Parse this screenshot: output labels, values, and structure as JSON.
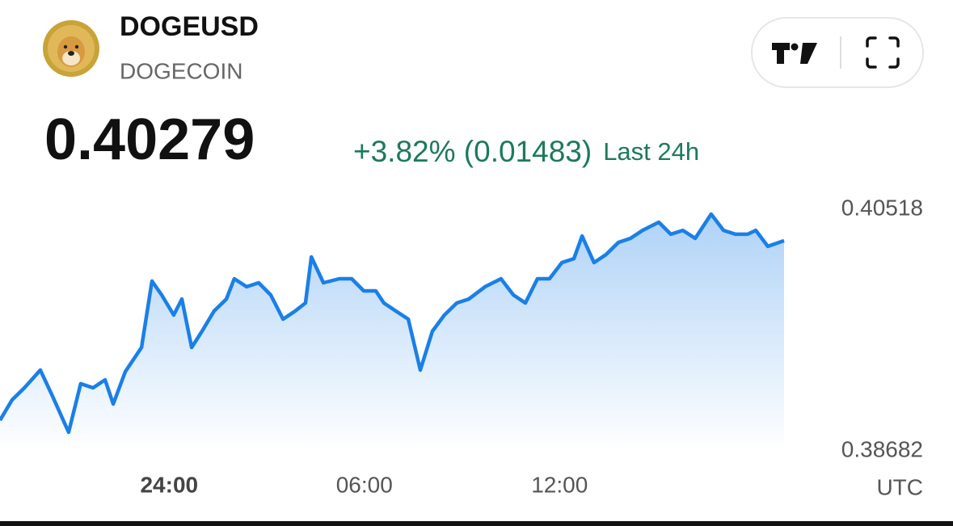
{
  "header": {
    "symbol": "DOGEUSD",
    "name": "DOGECOIN"
  },
  "price": {
    "last": "0.40279",
    "change": "+3.82% (0.01483)",
    "period": "Last 24h"
  },
  "chart_data": {
    "type": "area",
    "x": [
      18.8,
      19.17,
      19.55,
      20.04,
      20.41,
      20.91,
      21.28,
      21.66,
      22.03,
      22.28,
      22.65,
      23.15,
      23.47,
      23.77,
      24.14,
      24.39,
      24.69,
      25.01,
      25.38,
      25.76,
      26.0,
      26.38,
      26.75,
      27.12,
      27.5,
      27.87,
      28.19,
      28.37,
      28.74,
      29.23,
      29.61,
      29.98,
      30.35,
      30.6,
      30.97,
      31.35,
      31.72,
      32.09,
      32.46,
      32.84,
      33.21,
      33.71,
      34.2,
      34.58,
      34.95,
      35.32,
      35.69,
      36.07,
      36.44,
      36.69,
      37.06,
      37.43,
      37.81,
      38.18,
      38.55,
      39.05,
      39.42,
      39.79,
      40.17,
      40.66,
      41.04,
      41.41,
      41.78,
      42.03,
      42.4,
      42.9
    ],
    "values": [
      0.38915,
      0.39069,
      0.39161,
      0.39296,
      0.391,
      0.38823,
      0.39192,
      0.39161,
      0.39222,
      0.39038,
      0.39284,
      0.39468,
      0.39972,
      0.39867,
      0.39714,
      0.39836,
      0.39468,
      0.39591,
      0.39744,
      0.39836,
      0.3999,
      0.39929,
      0.39959,
      0.39867,
      0.39683,
      0.39744,
      0.39806,
      0.40156,
      0.39959,
      0.3999,
      0.3999,
      0.39898,
      0.39898,
      0.39806,
      0.39744,
      0.39683,
      0.39296,
      0.39591,
      0.39714,
      0.39806,
      0.39836,
      0.39929,
      0.3999,
      0.39867,
      0.39806,
      0.3999,
      0.3999,
      0.40113,
      0.40143,
      0.40315,
      0.40113,
      0.40174,
      0.40266,
      0.40297,
      0.40358,
      0.4042,
      0.40328,
      0.40358,
      0.40297,
      0.40481,
      0.40358,
      0.40328,
      0.40328,
      0.40358,
      0.40236,
      0.40279
    ],
    "color": "#1a7fe8",
    "xlim": [
      18.8,
      42.9
    ],
    "xticks": [
      {
        "value": 24,
        "label": "24:00"
      },
      {
        "value": 30,
        "label": "06:00"
      },
      {
        "value": 36,
        "label": "12:00"
      }
    ],
    "x_unit": "UTC",
    "ylim": [
      0.38682,
      0.40518
    ],
    "yticks": [
      0.40518,
      0.38682
    ],
    "grid": false
  }
}
